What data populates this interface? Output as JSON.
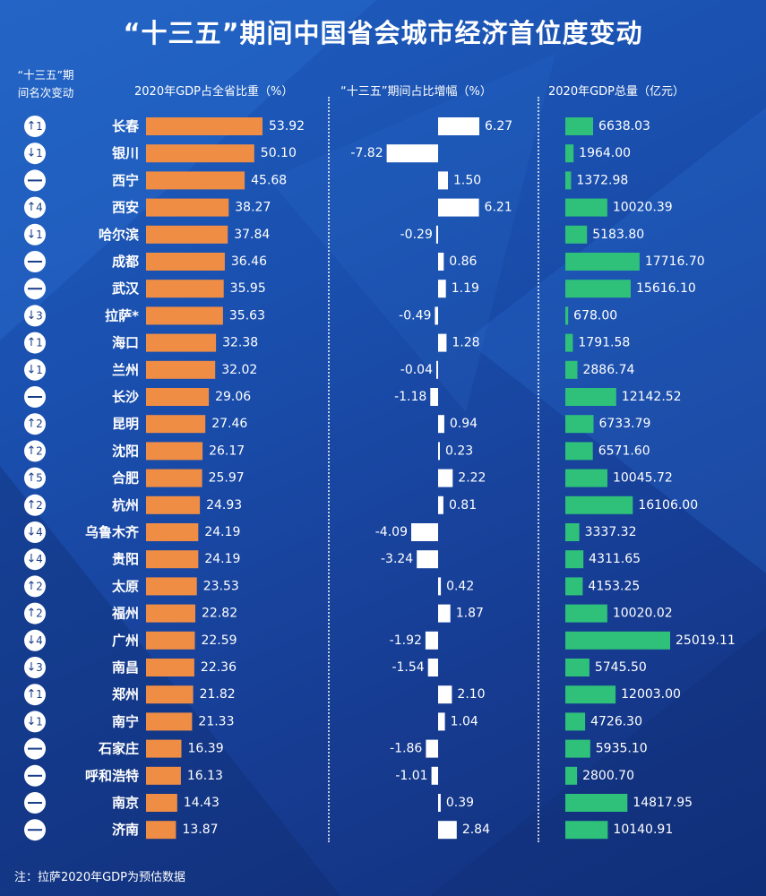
{
  "title": "“十三五”期间中国省会城市经济首位度变动",
  "headers": {
    "rank_change": "“十三五”期\n间名次变动",
    "share": "2020年GDP占全省比重（%）",
    "growth": "“十三五”期间占比增幅（%）",
    "total": "2020年GDP总量（亿元）"
  },
  "note": "注：拉萨2020年GDP为预估数据",
  "colors": {
    "share_bar": "#f08d45",
    "growth_bar": "#ffffff",
    "total_bar": "#2fc07a",
    "text": "#ffffff",
    "background": "#1a4fae"
  },
  "chart_data": {
    "type": "bar",
    "categories": [
      "长春",
      "银川",
      "西宁",
      "西安",
      "哈尔滨",
      "成都",
      "武汉",
      "拉萨*",
      "海口",
      "兰州",
      "长沙",
      "昆明",
      "沈阳",
      "合肥",
      "杭州",
      "乌鲁木齐",
      "贵阳",
      "太原",
      "福州",
      "广州",
      "南昌",
      "郑州",
      "南宁",
      "石家庄",
      "呼和浩特",
      "南京",
      "济南"
    ],
    "rank_change": [
      {
        "dir": "up",
        "n": "1"
      },
      {
        "dir": "down",
        "n": "1"
      },
      {
        "dir": "none",
        "n": ""
      },
      {
        "dir": "up",
        "n": "4"
      },
      {
        "dir": "down",
        "n": "1"
      },
      {
        "dir": "none",
        "n": ""
      },
      {
        "dir": "none",
        "n": ""
      },
      {
        "dir": "down",
        "n": "3"
      },
      {
        "dir": "up",
        "n": "1"
      },
      {
        "dir": "down",
        "n": "1"
      },
      {
        "dir": "none",
        "n": ""
      },
      {
        "dir": "up",
        "n": "2"
      },
      {
        "dir": "up",
        "n": "2"
      },
      {
        "dir": "up",
        "n": "5"
      },
      {
        "dir": "up",
        "n": "2"
      },
      {
        "dir": "down",
        "n": "4"
      },
      {
        "dir": "down",
        "n": "4"
      },
      {
        "dir": "up",
        "n": "2"
      },
      {
        "dir": "up",
        "n": "2"
      },
      {
        "dir": "down",
        "n": "4"
      },
      {
        "dir": "down",
        "n": "3"
      },
      {
        "dir": "up",
        "n": "1"
      },
      {
        "dir": "down",
        "n": "1"
      },
      {
        "dir": "none",
        "n": ""
      },
      {
        "dir": "none",
        "n": ""
      },
      {
        "dir": "none",
        "n": ""
      },
      {
        "dir": "none",
        "n": ""
      }
    ],
    "series": [
      {
        "name": "2020年GDP占全省比重（%）",
        "values": [
          53.92,
          50.1,
          45.68,
          38.27,
          37.84,
          36.46,
          35.95,
          35.63,
          32.38,
          32.02,
          29.06,
          27.46,
          26.17,
          25.97,
          24.93,
          24.19,
          24.19,
          23.53,
          22.82,
          22.59,
          22.36,
          21.82,
          21.33,
          16.39,
          16.13,
          14.43,
          13.87
        ],
        "labels": [
          "53.92",
          "50.10",
          "45.68",
          "38.27",
          "37.84",
          "36.46",
          "35.95",
          "35.63",
          "32.38",
          "32.02",
          "29.06",
          "27.46",
          "26.17",
          "25.97",
          "24.93",
          "24.19",
          "24.19",
          "23.53",
          "22.82",
          "22.59",
          "22.36",
          "21.82",
          "21.33",
          "16.39",
          "16.13",
          "14.43",
          "13.87"
        ]
      },
      {
        "name": "“十三五”期间占比增幅（%）",
        "values": [
          6.27,
          -7.82,
          1.5,
          6.21,
          -0.29,
          0.86,
          1.19,
          -0.49,
          1.28,
          -0.04,
          -1.18,
          0.94,
          0.23,
          2.22,
          0.81,
          -4.09,
          -3.24,
          0.42,
          1.87,
          -1.92,
          -1.54,
          2.1,
          1.04,
          -1.86,
          -1.01,
          0.39,
          2.84
        ],
        "labels": [
          "6.27",
          "-7.82",
          "1.50",
          "6.21",
          "-0.29",
          "0.86",
          "1.19",
          "-0.49",
          "1.28",
          "-0.04",
          "-1.18",
          "0.94",
          "0.23",
          "2.22",
          "0.81",
          "-4.09",
          "-3.24",
          "0.42",
          "1.87",
          "-1.92",
          "-1.54",
          "2.10",
          "1.04",
          "-1.86",
          "-1.01",
          "0.39",
          "2.84"
        ]
      },
      {
        "name": "2020年GDP总量（亿元）",
        "values": [
          6638.03,
          1964.0,
          1372.98,
          10020.39,
          5183.8,
          17716.7,
          15616.1,
          678.0,
          1791.58,
          2886.74,
          12142.52,
          6733.79,
          6571.6,
          10045.72,
          16106.0,
          3337.32,
          4311.65,
          4153.25,
          10020.02,
          25019.11,
          5745.5,
          12003.0,
          4726.3,
          5935.1,
          2800.7,
          14817.95,
          10140.91
        ],
        "labels": [
          "6638.03",
          "1964.00",
          "1372.98",
          "10020.39",
          "5183.80",
          "17716.70",
          "15616.10",
          "678.00",
          "1791.58",
          "2886.74",
          "12142.52",
          "6733.79",
          "6571.60",
          "10045.72",
          "16106.00",
          "3337.32",
          "4311.65",
          "4153.25",
          "10020.02",
          "25019.11",
          "5745.50",
          "12003.00",
          "4726.30",
          "5935.10",
          "2800.70",
          "14817.95",
          "10140.91"
        ]
      }
    ]
  }
}
